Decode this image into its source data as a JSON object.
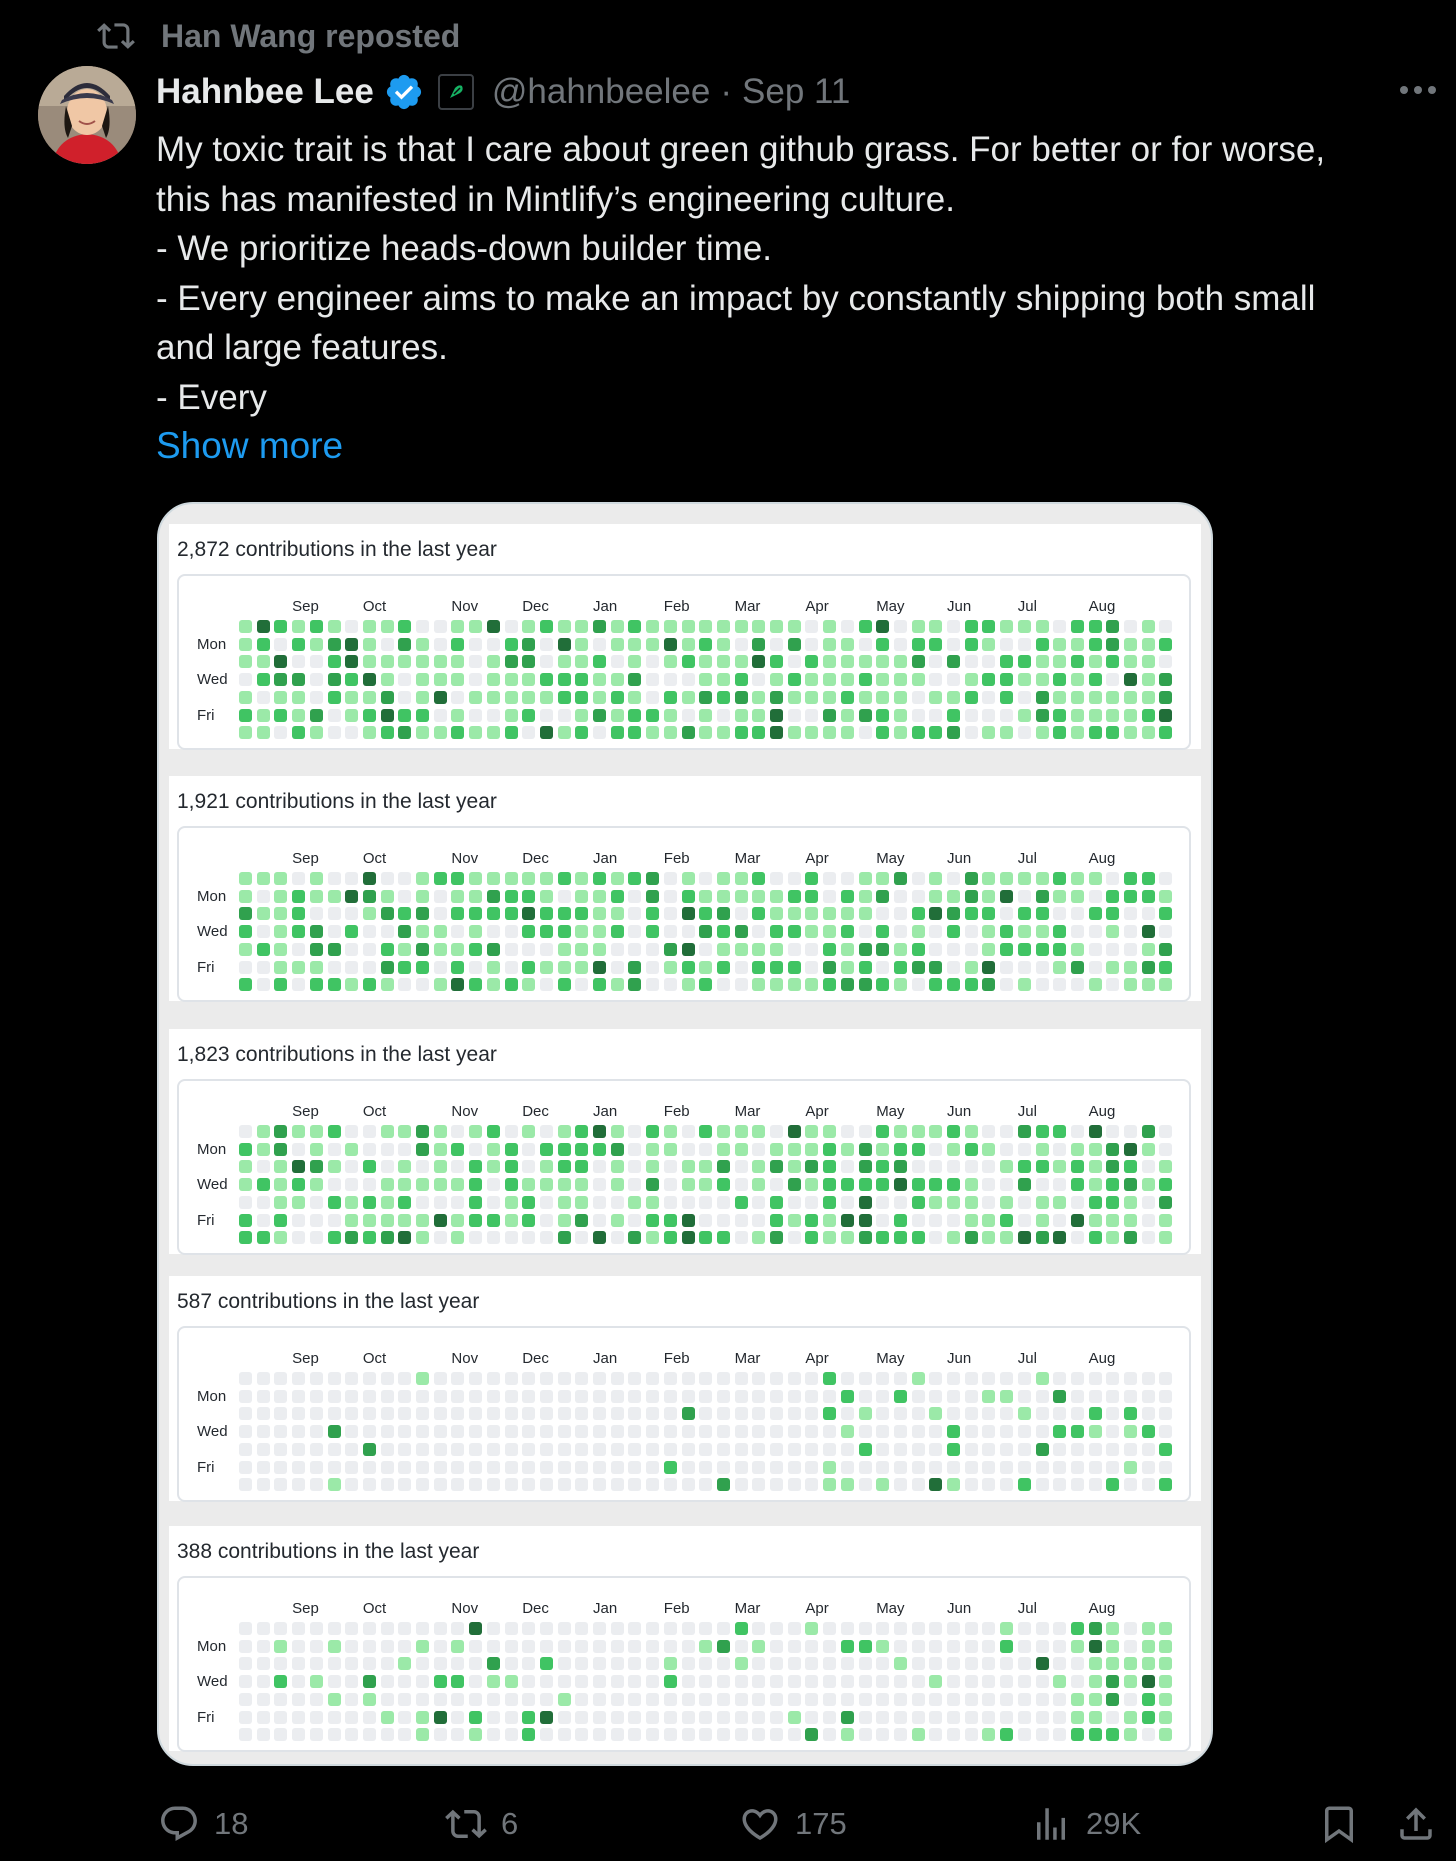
{
  "repost": {
    "label": "Han Wang reposted"
  },
  "post": {
    "author_name": "Hahnbee Lee",
    "handle": "@hahnbeelee",
    "separator": "·",
    "date": "Sep 11",
    "text": "My toxic trait is that I care about green github grass. For better or for worse,\nthis has manifested in Mintlify’s engineering culture.\n- We prioritize heads-down builder time.\n- Every engineer aims to make an impact by constantly shipping both small\nand large features.\n- Every",
    "show_more": "Show more"
  },
  "media": {
    "months": [
      "Sep",
      "Oct",
      "Nov",
      "Dec",
      "Jan",
      "Feb",
      "Mar",
      "Apr",
      "May",
      "Jun",
      "Jul",
      "Aug"
    ],
    "days": [
      "Mon",
      "Wed",
      "Fri"
    ],
    "palette": [
      "#ebedf0",
      "#9be9a8",
      "#40c463",
      "#30a14e",
      "#216e39"
    ],
    "panels": [
      {
        "title": "2,872 contributions in the last year",
        "intensity": 0.8
      },
      {
        "title": "1,921 contributions in the last year",
        "intensity": 0.72
      },
      {
        "title": "1,823 contributions in the last year",
        "intensity": 0.7
      },
      {
        "title": "587 contributions in the last year",
        "intensity": 0.25
      },
      {
        "title": "388 contributions in the last year",
        "intensity": 0.15
      }
    ]
  },
  "actions": {
    "replies": "18",
    "reposts": "6",
    "likes": "175",
    "views": "29K"
  },
  "colors": {
    "accent": "#1d9bf0",
    "muted": "#71767b",
    "text": "#e7e9ea",
    "background": "#000000"
  }
}
